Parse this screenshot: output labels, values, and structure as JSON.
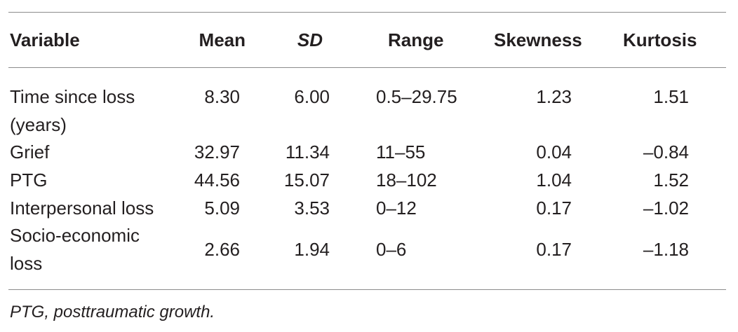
{
  "table": {
    "headers": [
      "Variable",
      "Mean",
      "SD",
      "Range",
      "Skewness",
      "Kurtosis"
    ],
    "rows": [
      {
        "variable_line1": "Time since loss",
        "variable_line2": "(years)",
        "mean": "8.30",
        "sd": "6.00",
        "range": "0.5–29.75",
        "skewness": "1.23",
        "kurtosis": "1.51"
      },
      {
        "variable_line1": "Grief",
        "mean": "32.97",
        "sd": "11.34",
        "range": "11–55",
        "skewness": "0.04",
        "kurtosis": "–0.84"
      },
      {
        "variable_line1": "PTG",
        "mean": "44.56",
        "sd": "15.07",
        "range": "18–102",
        "skewness": "1.04",
        "kurtosis": "1.52"
      },
      {
        "variable_line1": "Interpersonal loss",
        "mean": "5.09",
        "sd": "3.53",
        "range": "0–12",
        "skewness": "0.17",
        "kurtosis": "–1.02"
      },
      {
        "variable_line1": "Socio-economic",
        "variable_line2": "loss",
        "mean": "2.66",
        "sd": "1.94",
        "range": "0–6",
        "skewness": "0.17",
        "kurtosis": "–1.18"
      }
    ],
    "footnote": "PTG, posttraumatic growth."
  }
}
